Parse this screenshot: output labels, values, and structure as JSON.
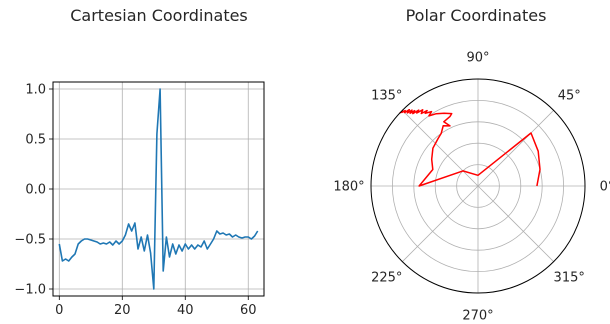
{
  "chart_data": [
    {
      "type": "line",
      "title": "Cartesian Coordinates",
      "xlabel": "",
      "ylabel": "",
      "xlim": [
        -2,
        65
      ],
      "ylim": [
        -1.07,
        1.07
      ],
      "xticks": [
        0,
        20,
        40,
        60
      ],
      "yticks": [
        1.0,
        0.5,
        0.0,
        -0.5,
        -1.0
      ],
      "xtick_labels": [
        "0",
        "20",
        "40",
        "60"
      ],
      "ytick_labels": [
        "1.0",
        "0.5",
        "0.0",
        "−0.5",
        "−1.0"
      ],
      "grid": true,
      "color": "#1f77b4",
      "series": [
        {
          "x": [
            0,
            1,
            2,
            3,
            4,
            5,
            6,
            7,
            8,
            9,
            10,
            11,
            12,
            13,
            14,
            15,
            16,
            17,
            18,
            19,
            20,
            21,
            22,
            23,
            24,
            25,
            26,
            27,
            28,
            29,
            30,
            31,
            32,
            33,
            34,
            35,
            36,
            37,
            38,
            39,
            40,
            41,
            42,
            43,
            44,
            45,
            46,
            47,
            48,
            49,
            50,
            51,
            52,
            53,
            54,
            55,
            56,
            57,
            58,
            59,
            60,
            61,
            62,
            63
          ],
          "values": [
            -0.55,
            -0.72,
            -0.7,
            -0.72,
            -0.68,
            -0.65,
            -0.55,
            -0.52,
            -0.5,
            -0.5,
            -0.51,
            -0.52,
            -0.53,
            -0.55,
            -0.54,
            -0.55,
            -0.53,
            -0.56,
            -0.52,
            -0.55,
            -0.52,
            -0.46,
            -0.35,
            -0.42,
            -0.34,
            -0.6,
            -0.48,
            -0.62,
            -0.46,
            -0.64,
            -1.0,
            0.55,
            1.0,
            -0.82,
            -0.48,
            -0.68,
            -0.55,
            -0.65,
            -0.56,
            -0.62,
            -0.55,
            -0.6,
            -0.56,
            -0.6,
            -0.56,
            -0.58,
            -0.52,
            -0.6,
            -0.55,
            -0.5,
            -0.42,
            -0.45,
            -0.44,
            -0.46,
            -0.45,
            -0.48,
            -0.46,
            -0.48,
            -0.49,
            -0.48,
            -0.48,
            -0.5,
            -0.47,
            -0.42
          ]
        }
      ]
    },
    {
      "type": "polar",
      "title": "Polar Coordinates",
      "theta_tick_labels": [
        "0°",
        "45°",
        "90°",
        "135°",
        "180°",
        "225°",
        "270°",
        "315°"
      ],
      "theta_ticks_deg": [
        0,
        45,
        90,
        135,
        180,
        225,
        270,
        315
      ],
      "rlim": [
        0,
        1.0
      ],
      "r_gridlines": [
        0.2,
        0.4,
        0.6,
        0.8
      ],
      "grid": true,
      "color": "#ff0000",
      "series": [
        {
          "theta_deg": [
            0,
            15,
            30,
            45,
            90,
            135,
            180,
            160,
            150,
            140,
            130,
            125,
            120,
            115,
            118,
            112,
            110,
            115,
            120,
            125,
            122,
            126,
            124,
            128,
            126,
            130,
            128,
            132,
            130,
            133,
            131,
            134,
            132,
            135,
            134,
            136,
            135,
            137
          ],
          "r": [
            0.55,
            0.6,
            0.65,
            0.7,
            0.1,
            0.2,
            0.55,
            0.45,
            0.5,
            0.55,
            0.58,
            0.6,
            0.65,
            0.62,
            0.68,
            0.7,
            0.72,
            0.75,
            0.78,
            0.8,
            0.82,
            0.84,
            0.85,
            0.86,
            0.88,
            0.89,
            0.9,
            0.91,
            0.92,
            0.93,
            0.94,
            0.95,
            0.96,
            0.97,
            0.98,
            0.99,
            0.99,
            1.0
          ]
        }
      ]
    }
  ]
}
